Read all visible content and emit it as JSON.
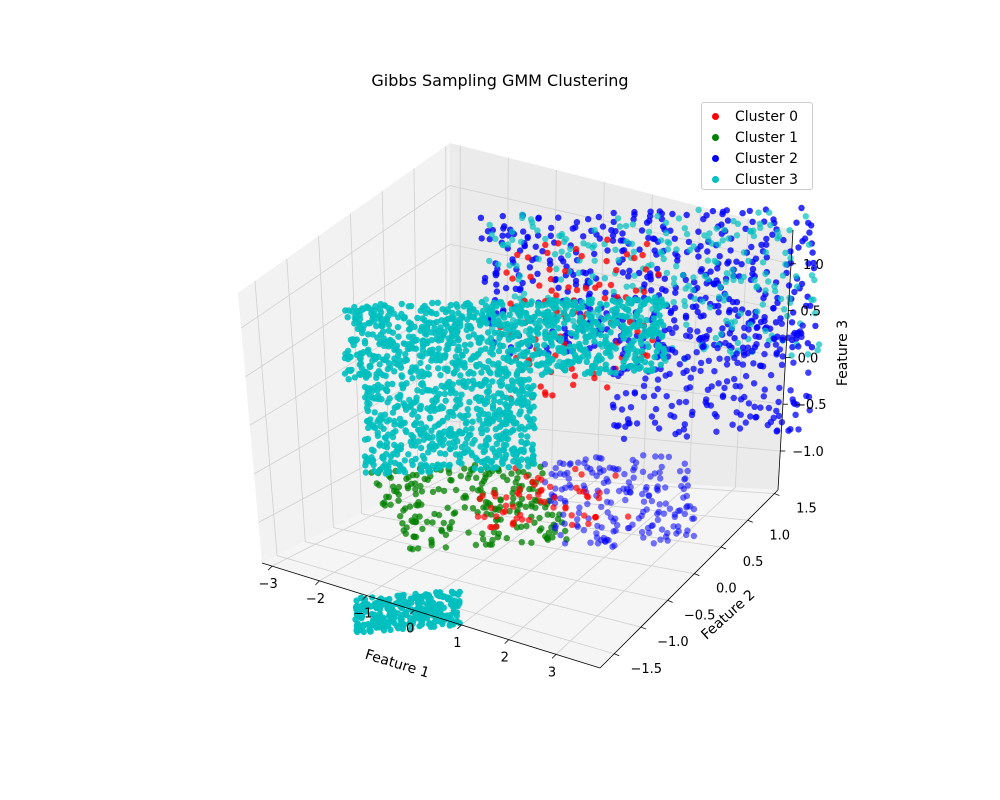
{
  "chart_data": {
    "type": "scatter",
    "projection": "3d",
    "title": "Gibbs Sampling GMM Clustering",
    "xlabel": "Feature 1",
    "ylabel": "Feature 2",
    "zlabel": "Feature 3",
    "xlim": [
      -3.3,
      3.3
    ],
    "ylim": [
      -1.7,
      1.7
    ],
    "zlim": [
      -1.2,
      1.2
    ],
    "xticks": [
      "−3",
      "−2",
      "−1",
      "0",
      "1",
      "2",
      "3"
    ],
    "yticks": [
      "−1.5",
      "−1.0",
      "−0.5",
      "0.0",
      "0.5",
      "1.0",
      "1.5"
    ],
    "zticks": [
      "−1.0",
      "−0.5",
      "0.0",
      "0.5",
      "1.0"
    ],
    "grid": true,
    "legend_position": "top-right",
    "series": [
      {
        "name": "Cluster 0",
        "color": "#ff0000"
      },
      {
        "name": "Cluster 1",
        "color": "#008000"
      },
      {
        "name": "Cluster 2",
        "color": "#0000ff"
      },
      {
        "name": "Cluster 3",
        "color": "#00bfbf"
      }
    ]
  }
}
